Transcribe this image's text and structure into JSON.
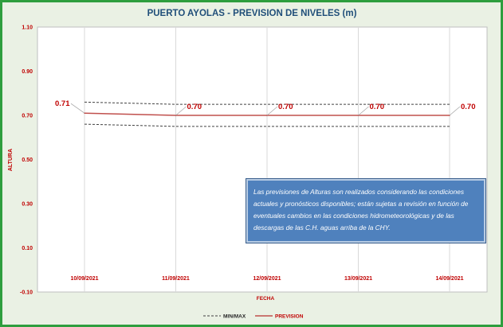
{
  "colors": {
    "title": "#1f4e79",
    "prevision": "#c0504d",
    "minmax": "#404040",
    "label": "#c00000",
    "grid": "#d9d9d9",
    "plot_bg": "#ffffff",
    "chart_bg": "#eaf1e4",
    "border": "#2e9e3e",
    "note_bg": "#4f81bd"
  },
  "note": "Las previsiones de Alturas son realizados considerando las condiciones actuales y pronósticos disponibles; están sujetas a revisión en función de eventuales cambios en las condiciones hidrometeorológicas y de las descargas de las C.H. aguas arriba de la CHY.",
  "chart_data": {
    "type": "line",
    "title": "PUERTO AYOLAS - PREVISION DE NIVELES (m)",
    "xlabel": "FECHA",
    "ylabel": "ALTURA",
    "categories": [
      "10/09/2021",
      "11/09/2021",
      "12/09/2021",
      "13/09/2021",
      "14/09/2021"
    ],
    "ylim": [
      -0.1,
      1.1
    ],
    "yticks": [
      -0.1,
      0.1,
      0.3,
      0.5,
      0.7,
      0.9,
      1.1
    ],
    "ytick_labels": [
      "-0.10",
      "0.10",
      "0.30",
      "0.50",
      "0.70",
      "0.90",
      "1.10"
    ],
    "grid": "vertical lines at categories",
    "legend_position": "bottom",
    "series": [
      {
        "name": "PREVISION",
        "style": "solid",
        "values": [
          0.71,
          0.7,
          0.7,
          0.7,
          0.7
        ],
        "data_labels": [
          "0.71",
          "0.70",
          "0.70",
          "0.70",
          "0.70"
        ]
      },
      {
        "name": "MIN/MAX",
        "style": "dashed",
        "role": "max",
        "values": [
          0.76,
          0.75,
          0.75,
          0.75,
          0.75
        ]
      },
      {
        "name": "MIN/MAX",
        "style": "dashed",
        "role": "min",
        "values": [
          0.66,
          0.65,
          0.65,
          0.65,
          0.65
        ]
      }
    ],
    "legend": [
      "MIN/MAX",
      "PREVISION"
    ]
  }
}
